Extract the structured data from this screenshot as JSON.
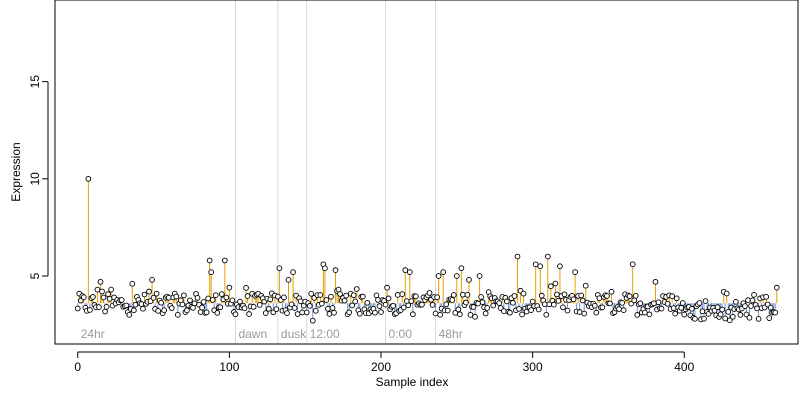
{
  "chart_data": {
    "type": "scatter",
    "title": "",
    "xlabel": "Sample index",
    "ylabel": "Expression",
    "xlim": [
      -15,
      475
    ],
    "ylim": [
      1.5,
      19.2
    ],
    "x_ticks": [
      0,
      100,
      200,
      300,
      400
    ],
    "y_ticks": [
      5,
      10,
      15
    ],
    "baseline": 3.6,
    "grid": false,
    "colors": {
      "above": "#e69f00",
      "below": "#6f95d3",
      "point_fill": "#ffffff",
      "point_stroke": "#000000",
      "divider": "#d9d9d9",
      "segment_label": "#9a9a9a"
    },
    "segments": [
      {
        "label": "24hr",
        "start": 0
      },
      {
        "label": "dawn",
        "start": 104
      },
      {
        "label": "dusk",
        "start": 132
      },
      {
        "label": "12:00",
        "start": 151
      },
      {
        "label": "0:00",
        "start": 203
      },
      {
        "label": "48hr",
        "start": 236
      }
    ],
    "point_count": 462,
    "highlights": [
      {
        "x": 7,
        "y": 10.0
      },
      {
        "x": 13,
        "y": 4.3
      },
      {
        "x": 15,
        "y": 4.7
      },
      {
        "x": 22,
        "y": 4.3
      },
      {
        "x": 36,
        "y": 4.6
      },
      {
        "x": 47,
        "y": 4.2
      },
      {
        "x": 49,
        "y": 4.8
      },
      {
        "x": 87,
        "y": 5.8
      },
      {
        "x": 88,
        "y": 5.2
      },
      {
        "x": 97,
        "y": 5.8
      },
      {
        "x": 100,
        "y": 4.4
      },
      {
        "x": 133,
        "y": 5.4
      },
      {
        "x": 139,
        "y": 4.8
      },
      {
        "x": 142,
        "y": 5.2
      },
      {
        "x": 162,
        "y": 5.6
      },
      {
        "x": 163,
        "y": 5.4
      },
      {
        "x": 170,
        "y": 5.3
      },
      {
        "x": 204,
        "y": 4.4
      },
      {
        "x": 216,
        "y": 5.3
      },
      {
        "x": 219,
        "y": 5.2
      },
      {
        "x": 238,
        "y": 5.0
      },
      {
        "x": 241,
        "y": 5.2
      },
      {
        "x": 250,
        "y": 5.0
      },
      {
        "x": 253,
        "y": 5.4
      },
      {
        "x": 258,
        "y": 4.8
      },
      {
        "x": 265,
        "y": 5.0
      },
      {
        "x": 290,
        "y": 6.0
      },
      {
        "x": 302,
        "y": 5.6
      },
      {
        "x": 305,
        "y": 5.5
      },
      {
        "x": 310,
        "y": 6.0
      },
      {
        "x": 318,
        "y": 5.5
      },
      {
        "x": 328,
        "y": 5.2
      },
      {
        "x": 335,
        "y": 4.5
      },
      {
        "x": 366,
        "y": 5.6
      },
      {
        "x": 381,
        "y": 4.7
      },
      {
        "x": 461,
        "y": 4.4
      }
    ],
    "low_points": [
      {
        "x": 155,
        "y": 2.7
      },
      {
        "x": 262,
        "y": 2.9
      },
      {
        "x": 413,
        "y": 2.8
      },
      {
        "x": 432,
        "y": 2.9
      }
    ]
  }
}
